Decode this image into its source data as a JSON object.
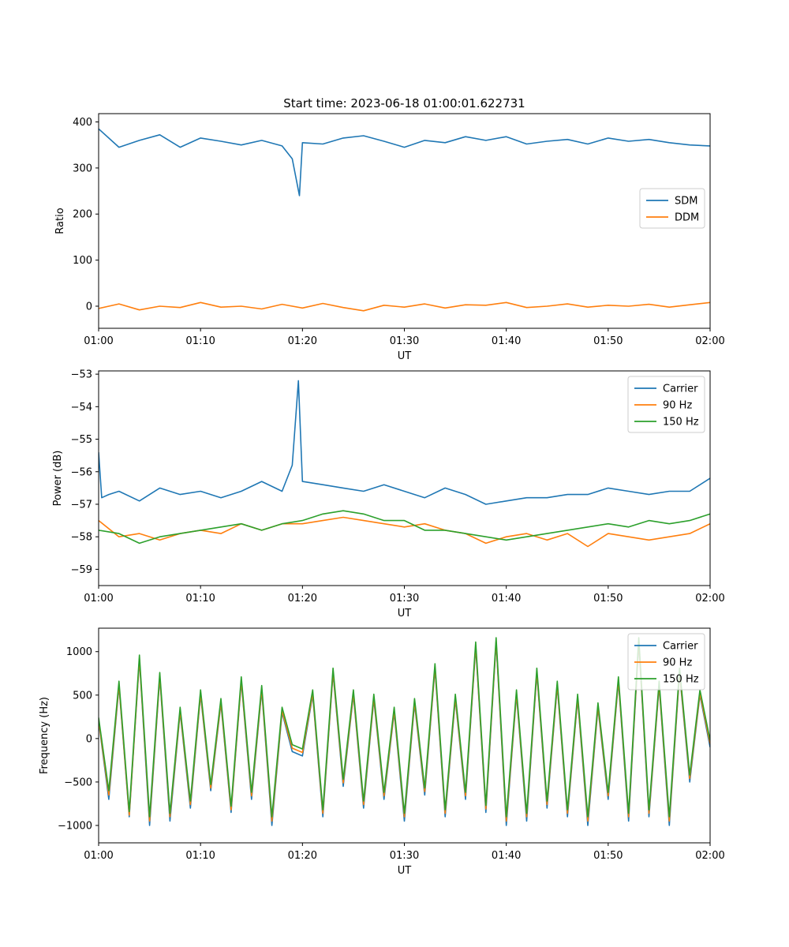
{
  "title": "Start time: 2023-06-18 01:00:01.622731",
  "series_colors": {
    "blue": "#1f77b4",
    "orange": "#ff7f0e",
    "green": "#2ca02c"
  },
  "chart_data": [
    {
      "type": "line",
      "ylabel": "Ratio",
      "xlabel": "UT",
      "xlim": [
        "01:00",
        "02:00"
      ],
      "ylim": [
        -48,
        418
      ],
      "x_ticks": [
        "01:00",
        "01:10",
        "01:20",
        "01:30",
        "01:40",
        "01:50",
        "02:00"
      ],
      "y_ticks": [
        0,
        100,
        200,
        300,
        400
      ],
      "legend_position": "center-right",
      "series": [
        {
          "name": "SDM",
          "x_minutes": [
            0,
            2,
            4,
            6,
            8,
            10,
            12,
            14,
            16,
            18,
            19,
            19.7,
            20,
            22,
            24,
            26,
            28,
            30,
            32,
            34,
            36,
            38,
            40,
            42,
            44,
            46,
            48,
            50,
            52,
            54,
            56,
            58,
            60
          ],
          "y": [
            385,
            345,
            360,
            372,
            345,
            365,
            358,
            350,
            360,
            348,
            320,
            240,
            355,
            352,
            365,
            370,
            358,
            345,
            360,
            355,
            368,
            360,
            368,
            352,
            358,
            362,
            352,
            365,
            358,
            362,
            355,
            350,
            348
          ]
        },
        {
          "name": "DDM",
          "x_minutes": [
            0,
            2,
            4,
            6,
            8,
            10,
            12,
            14,
            16,
            18,
            20,
            22,
            24,
            26,
            28,
            30,
            32,
            34,
            36,
            38,
            40,
            42,
            44,
            46,
            48,
            50,
            52,
            54,
            56,
            58,
            60
          ],
          "y": [
            -5,
            5,
            -8,
            0,
            -3,
            8,
            -2,
            0,
            -6,
            4,
            -4,
            6,
            -3,
            -10,
            2,
            -2,
            5,
            -4,
            3,
            2,
            8,
            -3,
            0,
            5,
            -2,
            2,
            0,
            4,
            -2,
            3,
            8
          ]
        }
      ]
    },
    {
      "type": "line",
      "ylabel": "Power (dB)",
      "xlabel": "UT",
      "xlim": [
        "01:00",
        "02:00"
      ],
      "ylim": [
        -59.5,
        -52.9
      ],
      "x_ticks": [
        "01:00",
        "01:10",
        "01:20",
        "01:30",
        "01:40",
        "01:50",
        "02:00"
      ],
      "y_ticks": [
        -53,
        -54,
        -55,
        -56,
        -57,
        -58,
        -59
      ],
      "legend_position": "top-right",
      "series": [
        {
          "name": "Carrier",
          "x_minutes": [
            0,
            0.3,
            1,
            2,
            4,
            6,
            8,
            10,
            12,
            14,
            16,
            18,
            19,
            19.6,
            20,
            22,
            24,
            26,
            28,
            30,
            32,
            34,
            36,
            38,
            40,
            42,
            44,
            46,
            48,
            50,
            52,
            54,
            56,
            58,
            60
          ],
          "y": [
            -55.4,
            -56.8,
            -56.7,
            -56.6,
            -56.9,
            -56.5,
            -56.7,
            -56.6,
            -56.8,
            -56.6,
            -56.3,
            -56.6,
            -55.8,
            -53.2,
            -56.3,
            -56.4,
            -56.5,
            -56.6,
            -56.4,
            -56.6,
            -56.8,
            -56.5,
            -56.7,
            -57.0,
            -56.9,
            -56.8,
            -56.8,
            -56.7,
            -56.7,
            -56.5,
            -56.6,
            -56.7,
            -56.6,
            -56.6,
            -56.2
          ]
        },
        {
          "name": "90 Hz",
          "x_minutes": [
            0,
            2,
            4,
            6,
            8,
            10,
            12,
            14,
            16,
            18,
            20,
            22,
            24,
            26,
            28,
            30,
            32,
            34,
            36,
            38,
            40,
            42,
            44,
            46,
            48,
            50,
            52,
            54,
            56,
            58,
            60
          ],
          "y": [
            -57.5,
            -58.0,
            -57.9,
            -58.1,
            -57.9,
            -57.8,
            -57.9,
            -57.6,
            -57.8,
            -57.6,
            -57.6,
            -57.5,
            -57.4,
            -57.5,
            -57.6,
            -57.7,
            -57.6,
            -57.8,
            -57.9,
            -58.2,
            -58.0,
            -57.9,
            -58.1,
            -57.9,
            -58.3,
            -57.9,
            -58.0,
            -58.1,
            -58.0,
            -57.9,
            -57.6
          ]
        },
        {
          "name": "150 Hz",
          "x_minutes": [
            0,
            2,
            4,
            6,
            8,
            10,
            12,
            14,
            16,
            18,
            20,
            22,
            24,
            26,
            28,
            30,
            32,
            34,
            36,
            38,
            40,
            42,
            44,
            46,
            48,
            50,
            52,
            54,
            56,
            58,
            60
          ],
          "y": [
            -57.8,
            -57.9,
            -58.2,
            -58.0,
            -57.9,
            -57.8,
            -57.7,
            -57.6,
            -57.8,
            -57.6,
            -57.5,
            -57.3,
            -57.2,
            -57.3,
            -57.5,
            -57.5,
            -57.8,
            -57.8,
            -57.9,
            -58.0,
            -58.1,
            -58.0,
            -57.9,
            -57.8,
            -57.7,
            -57.6,
            -57.7,
            -57.5,
            -57.6,
            -57.5,
            -57.3
          ]
        }
      ]
    },
    {
      "type": "line",
      "ylabel": "Frequency (Hz)",
      "xlabel": "UT",
      "xlim": [
        "01:00",
        "02:00"
      ],
      "ylim": [
        -1200,
        1270
      ],
      "x_ticks": [
        "01:00",
        "01:10",
        "01:20",
        "01:30",
        "01:40",
        "01:50",
        "02:00"
      ],
      "y_ticks": [
        1000,
        500,
        0,
        -500,
        -1000
      ],
      "legend_position": "top-right",
      "series": [
        {
          "name": "Carrier",
          "x_minutes": [
            0,
            1,
            2,
            3,
            4,
            5,
            6,
            7,
            8,
            9,
            10,
            11,
            12,
            13,
            14,
            15,
            16,
            17,
            18,
            19,
            20,
            21,
            22,
            23,
            24,
            25,
            26,
            27,
            28,
            29,
            30,
            31,
            32,
            33,
            34,
            35,
            36,
            37,
            38,
            39,
            40,
            41,
            42,
            43,
            44,
            45,
            46,
            47,
            48,
            49,
            50,
            51,
            52,
            53,
            54,
            55,
            56,
            57,
            58,
            59,
            60
          ],
          "y": [
            200,
            -700,
            600,
            -900,
            900,
            -1000,
            700,
            -950,
            300,
            -800,
            500,
            -600,
            400,
            -850,
            650,
            -700,
            550,
            -1000,
            300,
            -150,
            -200,
            500,
            -900,
            750,
            -550,
            500,
            -800,
            450,
            -700,
            300,
            -950,
            400,
            -650,
            800,
            -900,
            450,
            -700,
            1050,
            -850,
            1100,
            -1000,
            500,
            -950,
            750,
            -800,
            600,
            -900,
            450,
            -1000,
            350,
            -700,
            650,
            -950,
            1100,
            -900,
            600,
            -1000,
            750,
            -500,
            500,
            -100
          ]
        },
        {
          "name": "90 Hz",
          "x_minutes": [
            0,
            1,
            2,
            3,
            4,
            5,
            6,
            7,
            8,
            9,
            10,
            11,
            12,
            13,
            14,
            15,
            16,
            17,
            18,
            19,
            20,
            21,
            22,
            23,
            24,
            25,
            26,
            27,
            28,
            29,
            30,
            31,
            32,
            33,
            34,
            35,
            36,
            37,
            38,
            39,
            40,
            41,
            42,
            43,
            44,
            45,
            46,
            47,
            48,
            49,
            50,
            51,
            52,
            53,
            54,
            55,
            56,
            57,
            58,
            59,
            60
          ],
          "y": [
            210,
            -650,
            620,
            -880,
            920,
            -950,
            720,
            -900,
            320,
            -760,
            520,
            -570,
            420,
            -820,
            670,
            -660,
            570,
            -950,
            320,
            -110,
            -160,
            520,
            -860,
            770,
            -510,
            520,
            -760,
            470,
            -660,
            320,
            -900,
            420,
            -610,
            820,
            -860,
            470,
            -660,
            1070,
            -810,
            1120,
            -950,
            520,
            -900,
            770,
            -760,
            620,
            -860,
            470,
            -950,
            370,
            -660,
            670,
            -900,
            1120,
            -860,
            620,
            -950,
            770,
            -460,
            520,
            -60
          ]
        },
        {
          "name": "150 Hz",
          "x_minutes": [
            0,
            1,
            2,
            3,
            4,
            5,
            6,
            7,
            8,
            9,
            10,
            11,
            12,
            13,
            14,
            15,
            16,
            17,
            18,
            19,
            20,
            21,
            22,
            23,
            24,
            25,
            26,
            27,
            28,
            29,
            30,
            31,
            32,
            33,
            34,
            35,
            36,
            37,
            38,
            39,
            40,
            41,
            42,
            43,
            44,
            45,
            46,
            47,
            48,
            49,
            50,
            51,
            52,
            53,
            54,
            55,
            56,
            57,
            58,
            59,
            60
          ],
          "y": [
            240,
            -600,
            660,
            -840,
            960,
            -900,
            760,
            -860,
            360,
            -720,
            560,
            -530,
            460,
            -780,
            710,
            -620,
            610,
            -900,
            360,
            -70,
            -120,
            560,
            -820,
            810,
            -470,
            560,
            -720,
            510,
            -620,
            360,
            -860,
            460,
            -570,
            860,
            -820,
            510,
            -620,
            1110,
            -770,
            1160,
            -900,
            560,
            -860,
            810,
            -720,
            660,
            -820,
            510,
            -900,
            410,
            -620,
            710,
            -860,
            1160,
            -820,
            660,
            -900,
            810,
            -420,
            560,
            -20
          ]
        }
      ]
    }
  ]
}
